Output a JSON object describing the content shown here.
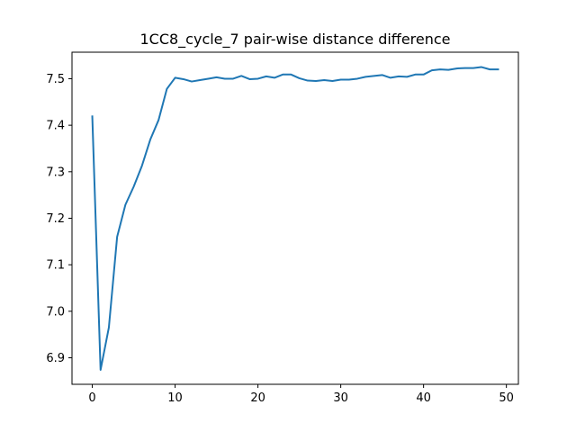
{
  "chart_data": {
    "type": "line",
    "title": "1CC8_cycle_7 pair-wise distance difference",
    "xlabel": "",
    "ylabel": "",
    "xlim": [
      -2.45,
      51.45
    ],
    "ylim": [
      6.843,
      7.557
    ],
    "xticks": [
      0,
      10,
      20,
      30,
      40,
      50
    ],
    "yticks": [
      6.9,
      7.0,
      7.1,
      7.2,
      7.3,
      7.4,
      7.5
    ],
    "ytick_labels": [
      "6.9",
      "7.0",
      "7.1",
      "7.2",
      "7.3",
      "7.4",
      "7.5"
    ],
    "grid": false,
    "series": [
      {
        "color": "#1f77b4",
        "x": [
          0,
          1,
          2,
          3,
          4,
          5,
          6,
          7,
          8,
          9,
          10,
          11,
          12,
          13,
          14,
          15,
          16,
          17,
          18,
          19,
          20,
          21,
          22,
          23,
          24,
          25,
          26,
          27,
          28,
          29,
          30,
          31,
          32,
          33,
          34,
          35,
          36,
          37,
          38,
          39,
          40,
          41,
          42,
          43,
          44,
          45,
          46,
          47,
          48,
          49
        ],
        "y": [
          7.419,
          6.874,
          6.965,
          7.16,
          7.229,
          7.268,
          7.313,
          7.369,
          7.411,
          7.478,
          7.502,
          7.499,
          7.494,
          7.497,
          7.5,
          7.503,
          7.5,
          7.5,
          7.506,
          7.499,
          7.5,
          7.505,
          7.502,
          7.509,
          7.509,
          7.501,
          7.496,
          7.495,
          7.497,
          7.495,
          7.498,
          7.498,
          7.5,
          7.504,
          7.506,
          7.508,
          7.502,
          7.505,
          7.504,
          7.509,
          7.509,
          7.518,
          7.52,
          7.519,
          7.522,
          7.523,
          7.523,
          7.525,
          7.52,
          7.52
        ]
      }
    ]
  }
}
